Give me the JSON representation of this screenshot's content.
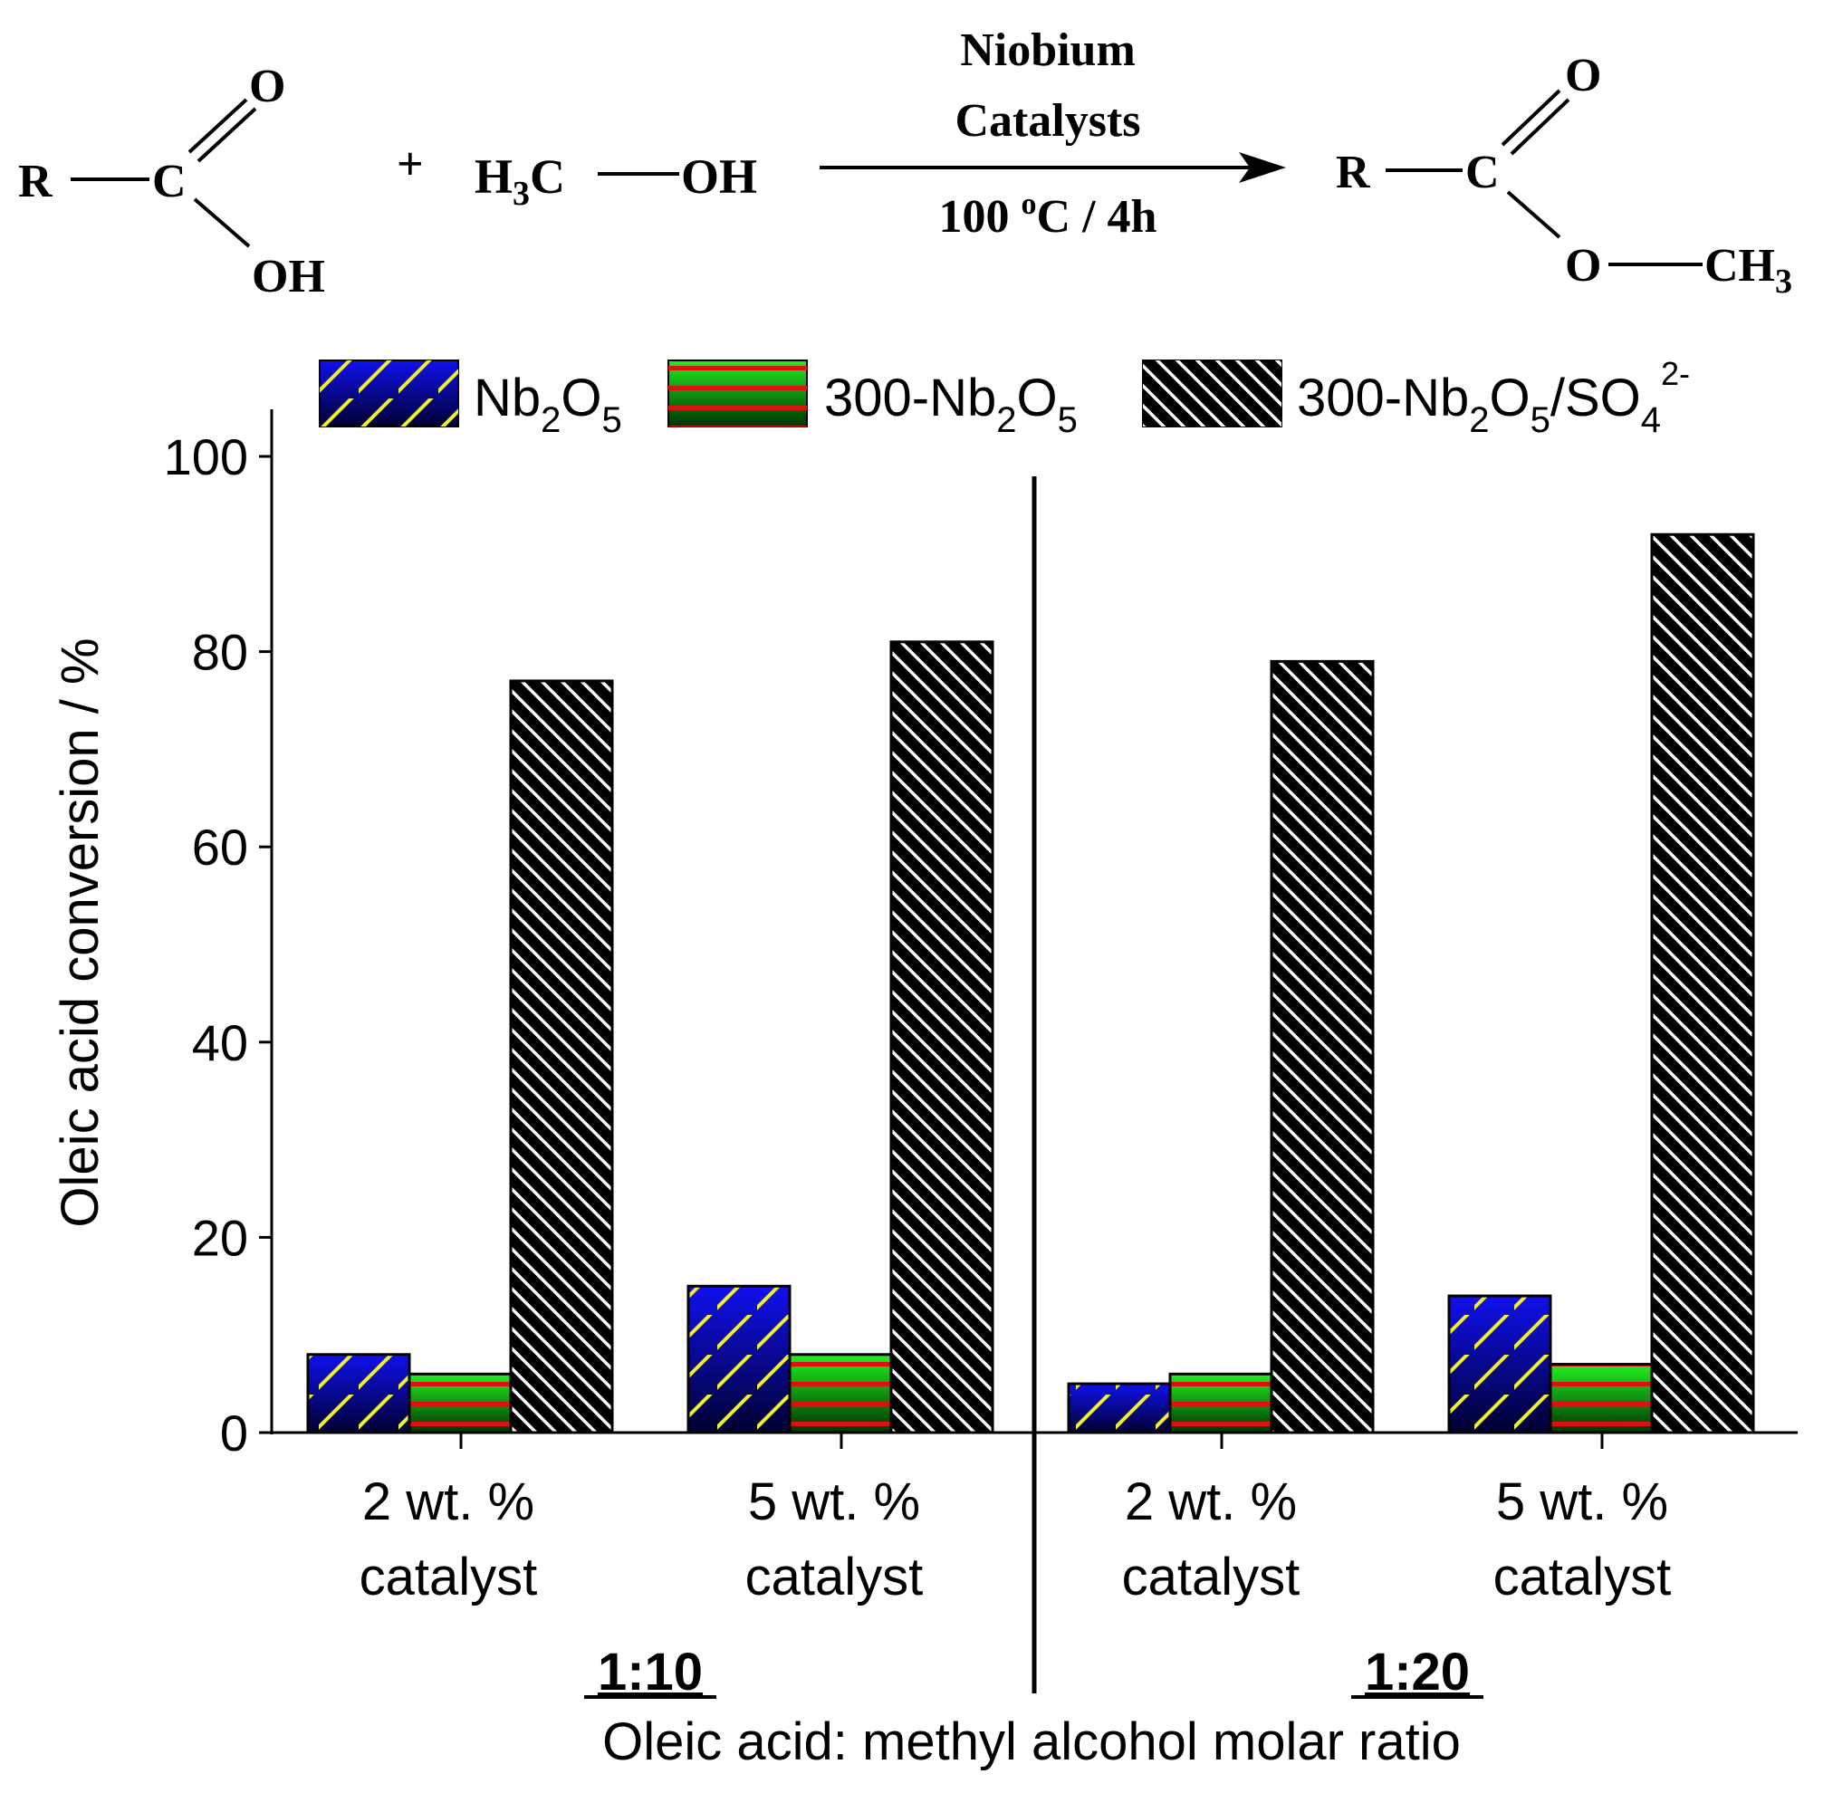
{
  "reaction": {
    "r_left": "R",
    "carbon_left": "C",
    "o_double_left": "O",
    "oh_left": "OH",
    "plus": "+",
    "methanol_h": "H",
    "methanol_h_sub": "3",
    "methanol_c": "C",
    "methanol_oh": "OH",
    "catalyst_line1": "Niobium",
    "catalyst_line2": "Catalysts",
    "conditions_temp": "100 ",
    "conditions_deg": "o",
    "conditions_rest": "C / 4h",
    "r_right": "R",
    "carbon_right": "C",
    "o_double_right": "O",
    "o_single_right": "O",
    "ch_right": "CH",
    "ch_right_sub": "3"
  },
  "legend": [
    {
      "base": "Nb",
      "sub1": "2",
      "mid": "O",
      "sub2": "5",
      "tail": "",
      "sub3": "",
      "sup": ""
    },
    {
      "base": "300-Nb",
      "sub1": "2",
      "mid": "O",
      "sub2": "5",
      "tail": "",
      "sub3": "",
      "sup": ""
    },
    {
      "base": "300-Nb",
      "sub1": "2",
      "mid": "O",
      "sub2": "5",
      "tail": "/SO",
      "sub3": "4",
      "sup": "2-"
    }
  ],
  "chart_data": {
    "type": "bar",
    "title": "",
    "ylabel": "Oleic acid conversion / %",
    "xlabel": "Oleic acid: methyl alcohol molar ratio",
    "ylim": [
      0,
      100
    ],
    "yticks": [
      0,
      20,
      40,
      60,
      80,
      100
    ],
    "group_labels": [
      "1:10",
      "1:20"
    ],
    "categories": [
      {
        "line1": "2 wt. %",
        "line2": "catalyst",
        "group": "1:10"
      },
      {
        "line1": "5 wt. %",
        "line2": "catalyst",
        "group": "1:10"
      },
      {
        "line1": "2 wt. %",
        "line2": "catalyst",
        "group": "1:20"
      },
      {
        "line1": "5 wt. %",
        "line2": "catalyst",
        "group": "1:20"
      }
    ],
    "series": [
      {
        "name": "Nb2O5",
        "pattern": "blue-yellow-hatch",
        "values": [
          8,
          15,
          5,
          14
        ]
      },
      {
        "name": "300-Nb2O5",
        "pattern": "green-red-stripes",
        "values": [
          6,
          8,
          6,
          7
        ]
      },
      {
        "name": "300-Nb2O5/SO4 2-",
        "pattern": "black-white-hatch",
        "values": [
          77,
          81,
          79,
          92
        ]
      }
    ],
    "colors": {
      "nb_fill_top": "#1010ee",
      "nb_fill_bottom": "#000030",
      "nb_hatch": "#f2f21a",
      "green_top": "#22ee22",
      "green_bottom": "#003300",
      "red_stripe": "#e01010",
      "black": "#000000",
      "white_hatch": "#ffffff"
    }
  }
}
